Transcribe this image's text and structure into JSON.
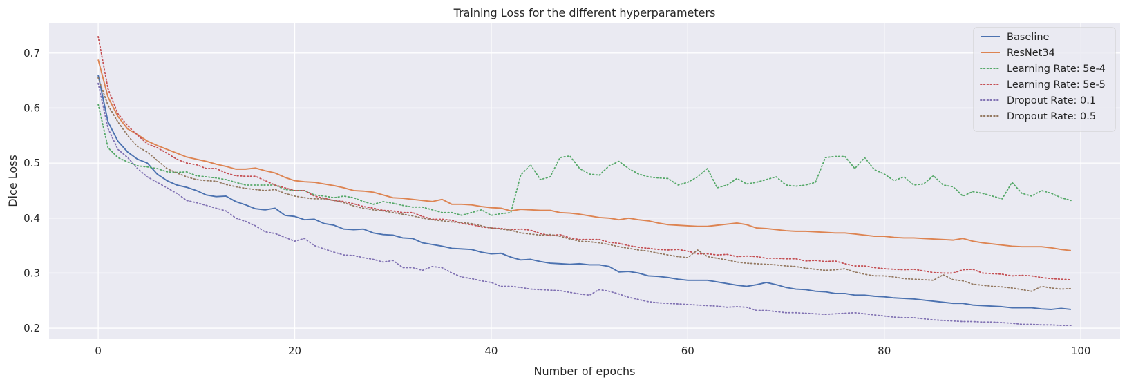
{
  "chart_data": {
    "type": "line",
    "title": "Training Loss for the different hyperparameters",
    "xlabel": "Number of epochs",
    "ylabel": "Dice Loss",
    "xlim": [
      -5,
      104
    ],
    "ylim": [
      0.18,
      0.755
    ],
    "xticks": [
      0,
      20,
      40,
      60,
      80,
      100
    ],
    "yticks": [
      0.2,
      0.3,
      0.4,
      0.5,
      0.6,
      0.7
    ],
    "grid": true,
    "legend_position": "top-right",
    "x": [
      0,
      1,
      2,
      3,
      4,
      5,
      6,
      7,
      8,
      9,
      10,
      11,
      12,
      13,
      14,
      15,
      16,
      17,
      18,
      19,
      20,
      21,
      22,
      23,
      24,
      25,
      26,
      27,
      28,
      29,
      30,
      31,
      32,
      33,
      34,
      35,
      36,
      37,
      38,
      39,
      40,
      41,
      42,
      43,
      44,
      45,
      46,
      47,
      48,
      49,
      50,
      51,
      52,
      53,
      54,
      55,
      56,
      57,
      58,
      59,
      60,
      61,
      62,
      63,
      64,
      65,
      66,
      67,
      68,
      69,
      70,
      71,
      72,
      73,
      74,
      75,
      76,
      77,
      78,
      79,
      80,
      81,
      82,
      83,
      84,
      85,
      86,
      87,
      88,
      89,
      90,
      91,
      92,
      93,
      94,
      95,
      96,
      97,
      98,
      99
    ],
    "series": [
      {
        "name": "Baseline",
        "color": "#4c72b0",
        "style": "solid",
        "values": [
          0.66,
          0.575,
          0.54,
          0.52,
          0.507,
          0.5,
          0.48,
          0.468,
          0.46,
          0.456,
          0.45,
          0.442,
          0.439,
          0.44,
          0.43,
          0.424,
          0.417,
          0.415,
          0.418,
          0.405,
          0.403,
          0.397,
          0.398,
          0.39,
          0.387,
          0.38,
          0.379,
          0.38,
          0.373,
          0.37,
          0.369,
          0.364,
          0.363,
          0.355,
          0.352,
          0.349,
          0.345,
          0.344,
          0.343,
          0.338,
          0.335,
          0.336,
          0.329,
          0.324,
          0.325,
          0.321,
          0.318,
          0.317,
          0.316,
          0.317,
          0.315,
          0.315,
          0.312,
          0.302,
          0.303,
          0.3,
          0.295,
          0.294,
          0.292,
          0.289,
          0.287,
          0.287,
          0.287,
          0.284,
          0.281,
          0.278,
          0.276,
          0.279,
          0.283,
          0.279,
          0.274,
          0.271,
          0.27,
          0.267,
          0.266,
          0.263,
          0.263,
          0.26,
          0.26,
          0.258,
          0.257,
          0.255,
          0.254,
          0.253,
          0.251,
          0.249,
          0.247,
          0.245,
          0.245,
          0.242,
          0.241,
          0.24,
          0.239,
          0.237,
          0.237,
          0.237,
          0.235,
          0.234,
          0.236,
          0.234
        ]
      },
      {
        "name": "ResNet34",
        "color": "#dd8452",
        "style": "solid",
        "values": [
          0.688,
          0.62,
          0.585,
          0.562,
          0.552,
          0.54,
          0.532,
          0.525,
          0.518,
          0.511,
          0.507,
          0.503,
          0.498,
          0.494,
          0.489,
          0.489,
          0.491,
          0.486,
          0.482,
          0.474,
          0.468,
          0.466,
          0.465,
          0.462,
          0.459,
          0.455,
          0.45,
          0.449,
          0.447,
          0.442,
          0.437,
          0.436,
          0.434,
          0.432,
          0.43,
          0.434,
          0.425,
          0.425,
          0.424,
          0.421,
          0.419,
          0.418,
          0.413,
          0.416,
          0.415,
          0.414,
          0.414,
          0.41,
          0.409,
          0.407,
          0.404,
          0.401,
          0.4,
          0.397,
          0.4,
          0.397,
          0.395,
          0.391,
          0.388,
          0.387,
          0.386,
          0.385,
          0.385,
          0.387,
          0.389,
          0.391,
          0.388,
          0.382,
          0.381,
          0.379,
          0.377,
          0.376,
          0.376,
          0.375,
          0.374,
          0.373,
          0.373,
          0.371,
          0.369,
          0.367,
          0.367,
          0.365,
          0.364,
          0.364,
          0.363,
          0.362,
          0.361,
          0.36,
          0.363,
          0.358,
          0.355,
          0.353,
          0.351,
          0.349,
          0.348,
          0.348,
          0.348,
          0.346,
          0.343,
          0.341
        ]
      },
      {
        "name": "Learning Rate: 5e-4",
        "color": "#55a868",
        "style": "dotted",
        "values": [
          0.607,
          0.528,
          0.51,
          0.502,
          0.495,
          0.493,
          0.49,
          0.484,
          0.483,
          0.484,
          0.477,
          0.475,
          0.473,
          0.47,
          0.465,
          0.46,
          0.46,
          0.46,
          0.46,
          0.452,
          0.45,
          0.45,
          0.442,
          0.44,
          0.437,
          0.44,
          0.437,
          0.43,
          0.425,
          0.43,
          0.427,
          0.423,
          0.42,
          0.42,
          0.415,
          0.41,
          0.41,
          0.405,
          0.41,
          0.415,
          0.405,
          0.408,
          0.41,
          0.478,
          0.497,
          0.47,
          0.475,
          0.51,
          0.513,
          0.49,
          0.48,
          0.478,
          0.495,
          0.503,
          0.49,
          0.48,
          0.475,
          0.473,
          0.472,
          0.46,
          0.465,
          0.475,
          0.49,
          0.455,
          0.46,
          0.472,
          0.462,
          0.465,
          0.47,
          0.475,
          0.46,
          0.458,
          0.46,
          0.465,
          0.51,
          0.512,
          0.512,
          0.49,
          0.51,
          0.488,
          0.48,
          0.468,
          0.475,
          0.46,
          0.462,
          0.477,
          0.46,
          0.457,
          0.44,
          0.448,
          0.445,
          0.44,
          0.435,
          0.465,
          0.445,
          0.44,
          0.45,
          0.445,
          0.437,
          0.432
        ]
      },
      {
        "name": "Learning Rate: 5e-5",
        "color": "#c44e52",
        "style": "dotted",
        "values": [
          0.73,
          0.635,
          0.59,
          0.568,
          0.551,
          0.535,
          0.528,
          0.518,
          0.507,
          0.5,
          0.497,
          0.49,
          0.49,
          0.482,
          0.477,
          0.476,
          0.476,
          0.468,
          0.46,
          0.455,
          0.45,
          0.45,
          0.44,
          0.436,
          0.432,
          0.43,
          0.426,
          0.421,
          0.418,
          0.414,
          0.413,
          0.41,
          0.41,
          0.403,
          0.398,
          0.398,
          0.396,
          0.39,
          0.388,
          0.384,
          0.382,
          0.381,
          0.379,
          0.38,
          0.378,
          0.372,
          0.368,
          0.37,
          0.364,
          0.361,
          0.361,
          0.361,
          0.356,
          0.354,
          0.35,
          0.347,
          0.345,
          0.343,
          0.342,
          0.343,
          0.34,
          0.335,
          0.335,
          0.333,
          0.334,
          0.33,
          0.331,
          0.33,
          0.327,
          0.327,
          0.326,
          0.326,
          0.322,
          0.323,
          0.321,
          0.322,
          0.317,
          0.313,
          0.313,
          0.31,
          0.308,
          0.307,
          0.306,
          0.307,
          0.304,
          0.301,
          0.3,
          0.3,
          0.306,
          0.307,
          0.3,
          0.299,
          0.298,
          0.295,
          0.296,
          0.295,
          0.292,
          0.29,
          0.289,
          0.288
        ]
      },
      {
        "name": "Dropout Rate: 0.1",
        "color": "#8172b3",
        "style": "dotted",
        "values": [
          0.645,
          0.563,
          0.525,
          0.51,
          0.49,
          0.475,
          0.465,
          0.455,
          0.445,
          0.432,
          0.428,
          0.423,
          0.418,
          0.413,
          0.4,
          0.394,
          0.386,
          0.375,
          0.372,
          0.365,
          0.358,
          0.363,
          0.35,
          0.344,
          0.338,
          0.333,
          0.332,
          0.328,
          0.325,
          0.32,
          0.323,
          0.31,
          0.31,
          0.305,
          0.312,
          0.31,
          0.3,
          0.293,
          0.29,
          0.286,
          0.283,
          0.276,
          0.276,
          0.274,
          0.271,
          0.27,
          0.269,
          0.268,
          0.265,
          0.262,
          0.26,
          0.27,
          0.267,
          0.262,
          0.256,
          0.252,
          0.248,
          0.246,
          0.245,
          0.244,
          0.243,
          0.242,
          0.241,
          0.24,
          0.238,
          0.239,
          0.238,
          0.232,
          0.232,
          0.23,
          0.228,
          0.228,
          0.227,
          0.226,
          0.225,
          0.226,
          0.227,
          0.228,
          0.226,
          0.224,
          0.222,
          0.22,
          0.219,
          0.219,
          0.217,
          0.215,
          0.214,
          0.213,
          0.212,
          0.212,
          0.211,
          0.211,
          0.21,
          0.209,
          0.207,
          0.207,
          0.206,
          0.206,
          0.205,
          0.205
        ]
      },
      {
        "name": "Dropout Rate: 0.5",
        "color": "#937860",
        "style": "dotted",
        "values": [
          0.655,
          0.605,
          0.575,
          0.55,
          0.53,
          0.52,
          0.505,
          0.49,
          0.482,
          0.475,
          0.47,
          0.468,
          0.467,
          0.461,
          0.457,
          0.454,
          0.452,
          0.45,
          0.452,
          0.445,
          0.44,
          0.437,
          0.435,
          0.435,
          0.432,
          0.428,
          0.422,
          0.418,
          0.415,
          0.413,
          0.41,
          0.407,
          0.404,
          0.4,
          0.397,
          0.395,
          0.393,
          0.392,
          0.39,
          0.386,
          0.382,
          0.38,
          0.378,
          0.373,
          0.371,
          0.369,
          0.37,
          0.367,
          0.362,
          0.358,
          0.357,
          0.355,
          0.352,
          0.348,
          0.345,
          0.342,
          0.34,
          0.336,
          0.333,
          0.33,
          0.328,
          0.342,
          0.33,
          0.327,
          0.324,
          0.32,
          0.318,
          0.317,
          0.316,
          0.315,
          0.313,
          0.312,
          0.309,
          0.307,
          0.305,
          0.306,
          0.308,
          0.302,
          0.298,
          0.295,
          0.295,
          0.293,
          0.29,
          0.289,
          0.288,
          0.287,
          0.297,
          0.288,
          0.286,
          0.28,
          0.278,
          0.276,
          0.275,
          0.273,
          0.27,
          0.267,
          0.276,
          0.273,
          0.271,
          0.272
        ]
      }
    ]
  }
}
